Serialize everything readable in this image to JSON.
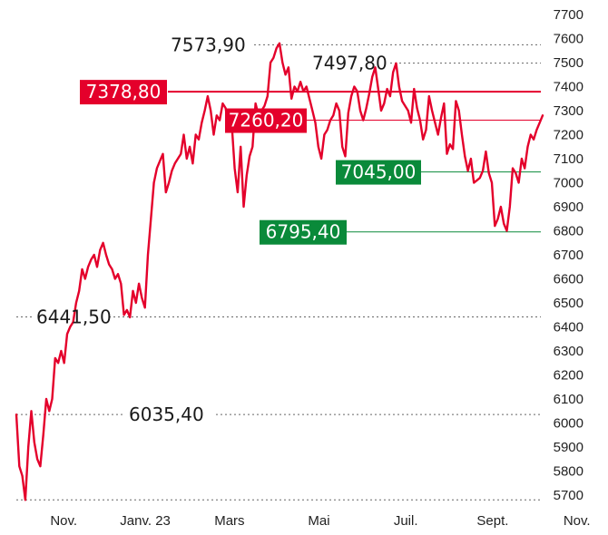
{
  "chart_data": {
    "type": "line",
    "ylim": [
      5650,
      7730
    ],
    "y_ticks": [
      "7700",
      "7600",
      "7500",
      "7400",
      "7300",
      "7200",
      "7100",
      "7000",
      "6900",
      "6800",
      "6700",
      "6600",
      "6500",
      "6400",
      "6300",
      "6200",
      "6100",
      "6000",
      "5900",
      "5800",
      "5700"
    ],
    "y_tick_values": [
      7700,
      7600,
      7500,
      7400,
      7300,
      7200,
      7100,
      7000,
      6900,
      6800,
      6700,
      6600,
      6500,
      6400,
      6300,
      6200,
      6100,
      6000,
      5900,
      5800,
      5700
    ],
    "x_ticks": [
      "Nov.",
      "Janv. 23",
      "Mars",
      "Mai",
      "Juil.",
      "Sept.",
      "Nov."
    ],
    "x_tick_pos": [
      0.09,
      0.245,
      0.405,
      0.575,
      0.74,
      0.905,
      1.065
    ],
    "series": [
      {
        "color": "#e4002b",
        "values": [
          6035,
          5820,
          5780,
          5680,
          5900,
          6050,
          5920,
          5850,
          5820,
          5950,
          6100,
          6050,
          6100,
          6270,
          6250,
          6300,
          6250,
          6370,
          6400,
          6420,
          6500,
          6550,
          6640,
          6600,
          6650,
          6680,
          6700,
          6650,
          6720,
          6750,
          6700,
          6660,
          6640,
          6600,
          6620,
          6580,
          6450,
          6470,
          6440,
          6550,
          6500,
          6580,
          6520,
          6480,
          6700,
          6850,
          7000,
          7060,
          7090,
          7120,
          6960,
          7000,
          7050,
          7080,
          7100,
          7120,
          7200,
          7100,
          7150,
          7080,
          7200,
          7180,
          7250,
          7300,
          7360,
          7300,
          7200,
          7280,
          7260,
          7330,
          7310,
          7220,
          7250,
          7060,
          6960,
          7150,
          6900,
          7030,
          7110,
          7150,
          7330,
          7280,
          7300,
          7320,
          7360,
          7500,
          7520,
          7560,
          7580,
          7500,
          7450,
          7480,
          7350,
          7400,
          7380,
          7420,
          7380,
          7400,
          7350,
          7300,
          7250,
          7150,
          7100,
          7200,
          7220,
          7260,
          7280,
          7330,
          7300,
          7150,
          7110,
          7290,
          7360,
          7400,
          7380,
          7300,
          7260,
          7310,
          7370,
          7440,
          7480,
          7390,
          7300,
          7330,
          7390,
          7360,
          7460,
          7497,
          7400,
          7340,
          7320,
          7300,
          7250,
          7390,
          7310,
          7260,
          7180,
          7220,
          7360,
          7300,
          7250,
          7200,
          7270,
          7330,
          7120,
          7160,
          7140,
          7340,
          7300,
          7200,
          7110,
          7050,
          7100,
          7000,
          7010,
          7020,
          7050,
          7130,
          7040,
          7000,
          6820,
          6850,
          6900,
          6830,
          6800,
          6900,
          7060,
          7040,
          7000,
          7100,
          7060,
          7150,
          7200,
          7180,
          7220,
          7250,
          7280
        ]
      }
    ],
    "annotations": [
      {
        "label": "7573,90",
        "value": 7573.9,
        "kind": "max"
      },
      {
        "label": "7497,80",
        "value": 7497.8,
        "kind": "level"
      },
      {
        "label": "7378,80",
        "value": 7378.8,
        "kind": "resistance",
        "color": "#e4002b"
      },
      {
        "label": "7260,20",
        "value": 7260.2,
        "kind": "resistance",
        "color": "#e4002b"
      },
      {
        "label": "7045,00",
        "value": 7045.0,
        "kind": "support",
        "color": "#0a8a3a"
      },
      {
        "label": "6795,40",
        "value": 6795.4,
        "kind": "support",
        "color": "#0a8a3a"
      },
      {
        "label": "6441,50",
        "value": 6441.5,
        "kind": "level"
      },
      {
        "label": "6035,40",
        "value": 6035.4,
        "kind": "level"
      }
    ],
    "colors": {
      "line": "#e4002b",
      "resistance": "#e4002b",
      "support": "#0a8a3a",
      "reference": "#666666",
      "text": "#1a1a1a"
    }
  }
}
